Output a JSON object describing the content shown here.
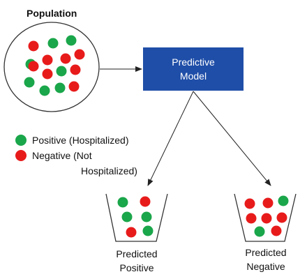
{
  "population": {
    "title": "Population"
  },
  "model": {
    "line1": "Predictive",
    "line2": "Model"
  },
  "legend": {
    "positive": {
      "label": "Positive (Hospitalized)",
      "color": "#1aa64a"
    },
    "negative": {
      "label_line1": "Negative (Not",
      "label_line2": "Hospitalized)",
      "color": "#e81b1b"
    }
  },
  "buckets": {
    "positive": {
      "line1": "Predicted",
      "line2": "Positive"
    },
    "negative": {
      "line1": "Predicted",
      "line2": "Negative"
    }
  },
  "colors": {
    "positive": "#1aa64a",
    "negative": "#e81b1b",
    "model_box": "#1f4ea8"
  }
}
